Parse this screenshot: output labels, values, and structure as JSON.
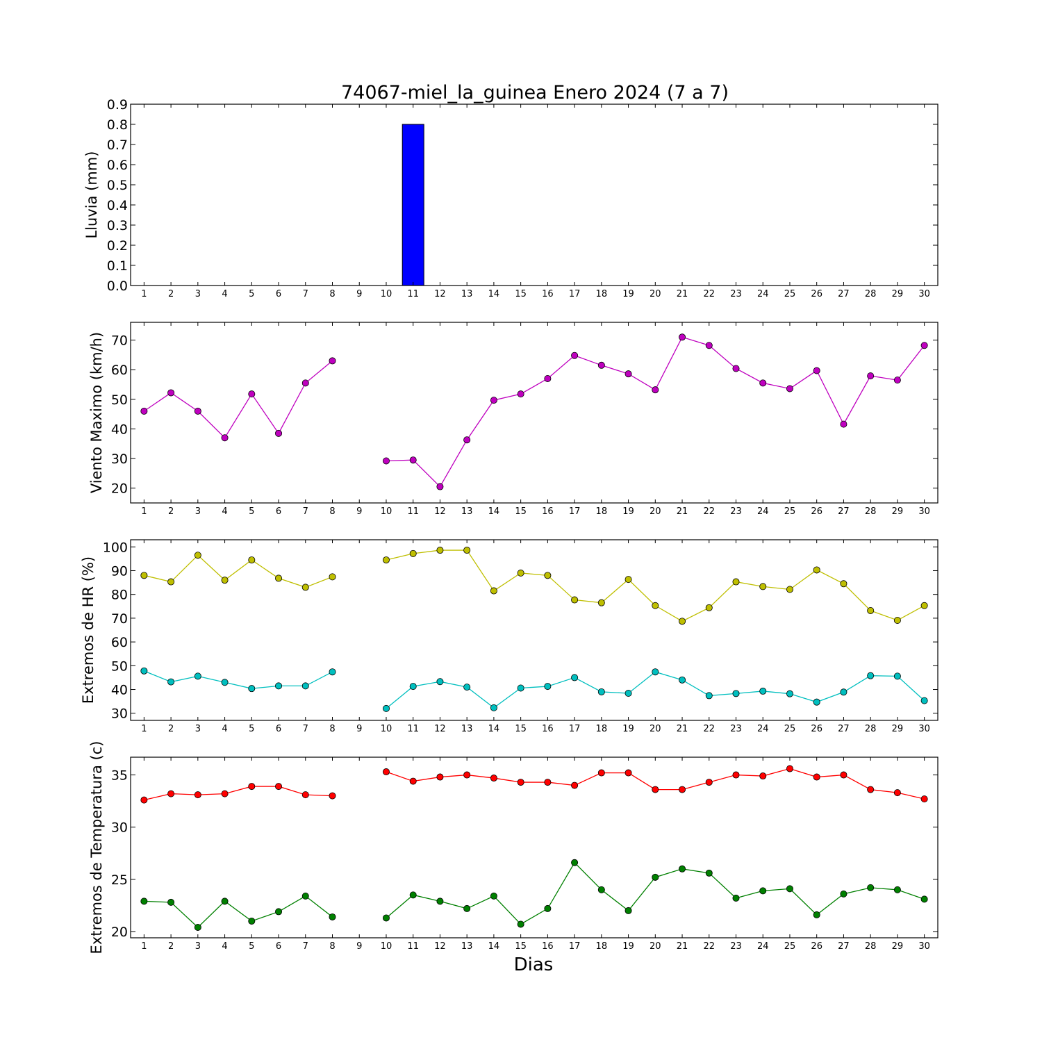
{
  "title": "74067-miel_la_guinea Enero 2024  (7 a 7)",
  "xlabel": "Dias",
  "chart_data": [
    {
      "type": "bar",
      "ylabel": "Lluvia (mm)",
      "x": [
        1,
        2,
        3,
        4,
        5,
        6,
        7,
        8,
        9,
        10,
        11,
        12,
        13,
        14,
        15,
        16,
        17,
        18,
        19,
        20,
        21,
        22,
        23,
        24,
        25,
        26,
        27,
        28,
        29,
        30
      ],
      "xlim": [
        0.5,
        30.5
      ],
      "ylim": [
        0,
        0.9
      ],
      "yticks": [
        0.0,
        0.1,
        0.2,
        0.3,
        0.4,
        0.5,
        0.6,
        0.7,
        0.8,
        0.9
      ],
      "ytick_decimals": 1,
      "series": [
        {
          "color": "#0000ff",
          "values": [
            0,
            0,
            0,
            0,
            0,
            0,
            0,
            0,
            null,
            0,
            0.8,
            0,
            0,
            0,
            0,
            0,
            0,
            0,
            0,
            0,
            0,
            0,
            0,
            0,
            0,
            0,
            0,
            0,
            0,
            0
          ]
        }
      ]
    },
    {
      "type": "line",
      "ylabel": "Viento Maximo (km/h)",
      "x": [
        1,
        2,
        3,
        4,
        5,
        6,
        7,
        8,
        9,
        10,
        11,
        12,
        13,
        14,
        15,
        16,
        17,
        18,
        19,
        20,
        21,
        22,
        23,
        24,
        25,
        26,
        27,
        28,
        29,
        30
      ],
      "xlim": [
        0.5,
        30.5
      ],
      "ylim": [
        15,
        76
      ],
      "yticks": [
        20,
        30,
        40,
        50,
        60,
        70
      ],
      "ytick_decimals": 0,
      "series": [
        {
          "color": "#bf00bf",
          "values": [
            46,
            52.2,
            46,
            37,
            51.8,
            38.5,
            55.5,
            63,
            null,
            29.2,
            29.5,
            20.5,
            36.3,
            49.7,
            51.8,
            57,
            64.8,
            61.5,
            58.6,
            53.2,
            71,
            68.2,
            60.4,
            55.5,
            53.6,
            59.7,
            41.6,
            57.9,
            56.5,
            68.2
          ]
        }
      ]
    },
    {
      "type": "line",
      "ylabel": "Extremos de HR (%)",
      "x": [
        1,
        2,
        3,
        4,
        5,
        6,
        7,
        8,
        9,
        10,
        11,
        12,
        13,
        14,
        15,
        16,
        17,
        18,
        19,
        20,
        21,
        22,
        23,
        24,
        25,
        26,
        27,
        28,
        29,
        30
      ],
      "xlim": [
        0.5,
        30.5
      ],
      "ylim": [
        27,
        103
      ],
      "yticks": [
        30,
        40,
        50,
        60,
        70,
        80,
        90,
        100
      ],
      "ytick_decimals": 0,
      "series": [
        {
          "color": "#bfbf00",
          "values": [
            88,
            85.3,
            96.5,
            86,
            94.5,
            86.8,
            83,
            87.4,
            null,
            94.5,
            97.2,
            98.6,
            98.6,
            81.5,
            89,
            88,
            77.7,
            76.5,
            86.3,
            75.3,
            68.7,
            74.4,
            85.3,
            83.3,
            82.1,
            90.3,
            84.5,
            73.2,
            69.1,
            75.3
          ]
        },
        {
          "color": "#00bfbf",
          "values": [
            47.8,
            43.2,
            45.6,
            43,
            40.4,
            41.5,
            41.5,
            47.4,
            null,
            32,
            41.3,
            43.3,
            41,
            32.3,
            40.6,
            41.3,
            45,
            39,
            38.4,
            47.4,
            44,
            37.4,
            38.3,
            39.3,
            38.2,
            34.7,
            38.9,
            45.8,
            45.6,
            35.3
          ]
        }
      ]
    },
    {
      "type": "line",
      "ylabel": "Extremos de Temperatura (c)",
      "x": [
        1,
        2,
        3,
        4,
        5,
        6,
        7,
        8,
        9,
        10,
        11,
        12,
        13,
        14,
        15,
        16,
        17,
        18,
        19,
        20,
        21,
        22,
        23,
        24,
        25,
        26,
        27,
        28,
        29,
        30
      ],
      "xlim": [
        0.5,
        30.5
      ],
      "ylim": [
        19.4,
        36.7
      ],
      "yticks": [
        20,
        25,
        30,
        35
      ],
      "ytick_decimals": 0,
      "series": [
        {
          "color": "#ff0000",
          "values": [
            32.6,
            33.2,
            33.1,
            33.2,
            33.9,
            33.9,
            33.1,
            33,
            null,
            35.3,
            34.4,
            34.8,
            35,
            34.7,
            34.3,
            34.3,
            34,
            35.2,
            35.2,
            33.6,
            33.6,
            34.3,
            35,
            34.9,
            35.6,
            34.8,
            35,
            33.6,
            33.3,
            32.7
          ]
        },
        {
          "color": "#008000",
          "values": [
            22.9,
            22.8,
            20.4,
            22.9,
            21,
            21.9,
            23.4,
            21.4,
            null,
            21.3,
            23.5,
            22.9,
            22.2,
            23.4,
            20.7,
            22.2,
            26.6,
            24,
            22,
            25.2,
            26,
            25.6,
            23.2,
            23.9,
            24.1,
            21.6,
            23.6,
            24.2,
            24,
            23.1
          ]
        }
      ]
    }
  ]
}
